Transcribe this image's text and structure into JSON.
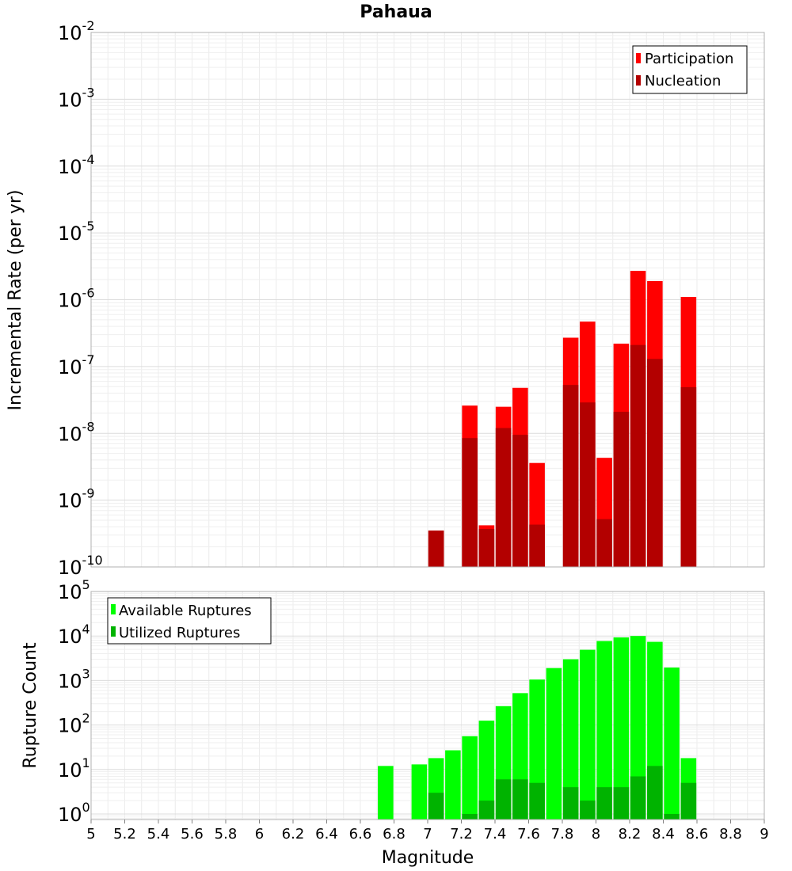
{
  "chart_data": [
    {
      "type": "bar",
      "title": "Pahaua",
      "xlabel": "",
      "ylabel": "Incremental Rate (per yr)",
      "yscale": "log",
      "ylim": [
        1e-10,
        0.01
      ],
      "xlim": [
        5,
        9
      ],
      "ytick_exponents": [
        "-10",
        "-9",
        "-8",
        "-7",
        "-6",
        "-5",
        "-4",
        "-3",
        "-2"
      ],
      "ytick_base": "10",
      "grid": true,
      "legend_position": "top-right",
      "bar_width": 0.092,
      "series": [
        {
          "name": "Participation",
          "color": "#ff0000",
          "x": [
            7.05,
            7.25,
            7.35,
            7.45,
            7.55,
            7.65,
            7.85,
            7.95,
            8.05,
            8.15,
            8.25,
            8.35,
            8.55
          ],
          "values": [
            3.5e-10,
            2.6e-08,
            4.2e-10,
            2.5e-08,
            4.8e-08,
            3.6e-09,
            2.7e-07,
            4.7e-07,
            4.3e-09,
            2.2e-07,
            2.7e-06,
            1.9e-06,
            1.1e-06
          ]
        },
        {
          "name": "Nucleation",
          "color": "#b30000",
          "x": [
            7.05,
            7.25,
            7.35,
            7.45,
            7.55,
            7.65,
            7.85,
            7.95,
            8.05,
            8.15,
            8.25,
            8.35,
            8.55
          ],
          "values": [
            3.5e-10,
            8.5e-09,
            3.7e-10,
            1.2e-08,
            9.5e-09,
            4.3e-10,
            5.3e-08,
            2.9e-08,
            5.2e-10,
            2.1e-08,
            2.1e-07,
            1.3e-07,
            4.9e-08
          ]
        }
      ]
    },
    {
      "type": "bar",
      "title": "",
      "xlabel": "Magnitude",
      "ylabel": "Rupture Count",
      "yscale": "log",
      "ylim": [
        0.75,
        100000
      ],
      "xlim": [
        5,
        9
      ],
      "ytick_exponents": [
        "0",
        "1",
        "2",
        "3",
        "4",
        "5"
      ],
      "ytick_base": "10",
      "xticks": [
        "5",
        "5.2",
        "5.4",
        "5.6",
        "5.8",
        "6",
        "6.2",
        "6.4",
        "6.6",
        "6.8",
        "7",
        "7.2",
        "7.4",
        "7.6",
        "7.8",
        "8",
        "8.2",
        "8.4",
        "8.6",
        "8.8",
        "9"
      ],
      "grid": true,
      "legend_position": "top-left",
      "bar_width": 0.092,
      "series": [
        {
          "name": "Available Ruptures",
          "color": "#00ff00",
          "x": [
            6.75,
            6.95,
            7.05,
            7.15,
            7.25,
            7.35,
            7.45,
            7.55,
            7.65,
            7.75,
            7.85,
            7.95,
            8.05,
            8.15,
            8.25,
            8.35,
            8.45,
            8.55
          ],
          "values": [
            12,
            13,
            18,
            27,
            56,
            125,
            265,
            520,
            1050,
            1900,
            3000,
            4900,
            7700,
            9300,
            10000,
            7400,
            1950,
            18
          ]
        },
        {
          "name": "Utilized Ruptures",
          "color": "#00b300",
          "x": [
            7.05,
            7.25,
            7.35,
            7.45,
            7.55,
            7.65,
            7.85,
            7.95,
            8.05,
            8.15,
            8.25,
            8.35,
            8.45,
            8.55
          ],
          "values": [
            3,
            1,
            2,
            6,
            6,
            5,
            4,
            2,
            4,
            4,
            7,
            12,
            1,
            5
          ]
        }
      ]
    }
  ]
}
